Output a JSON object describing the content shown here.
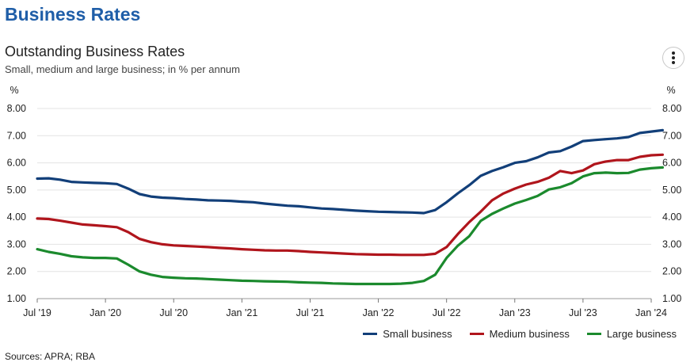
{
  "page_title": "Business Rates",
  "menu_icon": "vertical-dots-icon",
  "sources": "Sources: APRA; RBA",
  "chart_data": {
    "type": "line",
    "title": "Outstanding Business Rates",
    "subtitle": "Small, medium and large business; in % per annum",
    "ylabel_left": "%",
    "ylabel_right": "%",
    "ylim": [
      1.0,
      8.0
    ],
    "yticks": [
      "1.00",
      "2.00",
      "3.00",
      "4.00",
      "5.00",
      "6.00",
      "7.00",
      "8.00"
    ],
    "xlim": [
      0,
      54
    ],
    "xticks": [
      {
        "label": "Jul '19",
        "at": 0
      },
      {
        "label": "Jan '20",
        "at": 6
      },
      {
        "label": "Jul '20",
        "at": 12
      },
      {
        "label": "Jan '21",
        "at": 18
      },
      {
        "label": "Jul '21",
        "at": 24
      },
      {
        "label": "Jan '22",
        "at": 30
      },
      {
        "label": "Jul '22",
        "at": 36
      },
      {
        "label": "Jan '23",
        "at": 42
      },
      {
        "label": "Jul '23",
        "at": 48
      },
      {
        "label": "Jan '24",
        "at": 54
      }
    ],
    "x": [
      "2019-07",
      "2019-08",
      "2019-09",
      "2019-10",
      "2019-11",
      "2019-12",
      "2020-01",
      "2020-02",
      "2020-03",
      "2020-04",
      "2020-05",
      "2020-06",
      "2020-07",
      "2020-08",
      "2020-09",
      "2020-10",
      "2020-11",
      "2020-12",
      "2021-01",
      "2021-02",
      "2021-03",
      "2021-04",
      "2021-05",
      "2021-06",
      "2021-07",
      "2021-08",
      "2021-09",
      "2021-10",
      "2021-11",
      "2021-12",
      "2022-01",
      "2022-02",
      "2022-03",
      "2022-04",
      "2022-05",
      "2022-06",
      "2022-07",
      "2022-08",
      "2022-09",
      "2022-10",
      "2022-11",
      "2022-12",
      "2023-01",
      "2023-02",
      "2023-03",
      "2023-04",
      "2023-05",
      "2023-06",
      "2023-07",
      "2023-08",
      "2023-09",
      "2023-10",
      "2023-11",
      "2023-12",
      "2024-01",
      "2024-02"
    ],
    "grid": true,
    "legend_position": "bottom-right",
    "series": [
      {
        "name": "Small business",
        "color": "#123f79",
        "values": [
          5.42,
          5.43,
          5.38,
          5.3,
          5.28,
          5.26,
          5.25,
          5.22,
          5.05,
          4.85,
          4.76,
          4.72,
          4.7,
          4.67,
          4.65,
          4.62,
          4.61,
          4.6,
          4.57,
          4.55,
          4.5,
          4.46,
          4.42,
          4.4,
          4.36,
          4.32,
          4.3,
          4.27,
          4.24,
          4.22,
          4.2,
          4.19,
          4.18,
          4.17,
          4.15,
          4.26,
          4.55,
          4.88,
          5.18,
          5.52,
          5.7,
          5.84,
          6.0,
          6.06,
          6.2,
          6.38,
          6.43,
          6.6,
          6.8,
          6.84,
          6.87,
          6.9,
          6.95,
          7.1,
          7.15,
          7.2
        ]
      },
      {
        "name": "Medium business",
        "color": "#b0151c",
        "values": [
          3.95,
          3.93,
          3.87,
          3.8,
          3.73,
          3.7,
          3.67,
          3.63,
          3.45,
          3.2,
          3.08,
          3.0,
          2.96,
          2.94,
          2.92,
          2.9,
          2.87,
          2.85,
          2.82,
          2.8,
          2.78,
          2.77,
          2.77,
          2.75,
          2.72,
          2.7,
          2.68,
          2.66,
          2.64,
          2.63,
          2.62,
          2.62,
          2.61,
          2.61,
          2.61,
          2.65,
          2.9,
          3.38,
          3.82,
          4.2,
          4.62,
          4.87,
          5.05,
          5.2,
          5.3,
          5.45,
          5.7,
          5.62,
          5.72,
          5.95,
          6.05,
          6.1,
          6.1,
          6.22,
          6.28,
          6.3
        ]
      },
      {
        "name": "Large business",
        "color": "#1b8a2d",
        "values": [
          2.82,
          2.72,
          2.65,
          2.56,
          2.52,
          2.5,
          2.5,
          2.48,
          2.25,
          2.0,
          1.88,
          1.8,
          1.77,
          1.75,
          1.74,
          1.72,
          1.7,
          1.68,
          1.66,
          1.65,
          1.64,
          1.63,
          1.62,
          1.6,
          1.59,
          1.58,
          1.56,
          1.55,
          1.54,
          1.54,
          1.54,
          1.54,
          1.55,
          1.58,
          1.65,
          1.88,
          2.5,
          2.95,
          3.3,
          3.86,
          4.12,
          4.32,
          4.5,
          4.63,
          4.78,
          5.02,
          5.1,
          5.25,
          5.5,
          5.62,
          5.64,
          5.62,
          5.63,
          5.75,
          5.8,
          5.83
        ]
      }
    ]
  }
}
